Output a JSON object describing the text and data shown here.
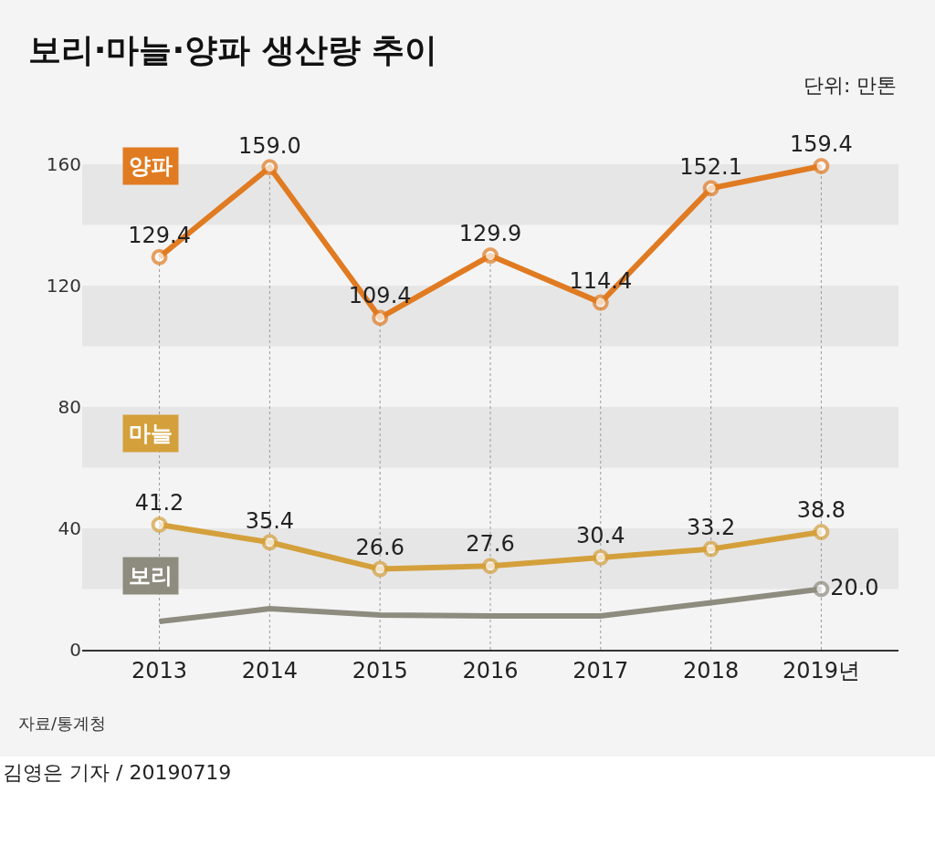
{
  "chart_data": {
    "type": "line",
    "title": "보리·마늘·양파 생산량 추이",
    "categories": [
      "2013",
      "2014",
      "2015",
      "2016",
      "2017",
      "2018",
      "2019년"
    ],
    "series": [
      {
        "name": "양파",
        "color": "#e07b22",
        "values": [
          129.4,
          159.0,
          109.4,
          129.9,
          114.4,
          152.1,
          159.4
        ],
        "value_labels": [
          "129.4",
          "159.0",
          "109.4",
          "129.9",
          "114.4",
          "152.1",
          "159.4"
        ]
      },
      {
        "name": "마늘",
        "color": "#d4a03c",
        "values": [
          41.2,
          35.4,
          26.6,
          27.6,
          30.4,
          33.2,
          38.8
        ],
        "value_labels": [
          "41.2",
          "35.4",
          "26.6",
          "27.6",
          "30.4",
          "33.2",
          "38.8"
        ]
      },
      {
        "name": "보리",
        "color": "#8e8b7f",
        "values": [
          9.3,
          13.5,
          11.4,
          11.1,
          11.1,
          15.5,
          20.0
        ],
        "value_labels": [
          null,
          null,
          null,
          null,
          null,
          null,
          "20.0"
        ],
        "marker": "none"
      }
    ],
    "ylim": [
      0,
      160
    ],
    "yticks": [
      0,
      40,
      80,
      120,
      160
    ],
    "bands": [
      {
        "axis": "y",
        "from": 20,
        "to": 40,
        "color": "#e6e6e6"
      },
      {
        "axis": "y",
        "from": 60,
        "to": 80,
        "color": "#e6e6e6"
      },
      {
        "axis": "y",
        "from": 100,
        "to": 120,
        "color": "#e6e6e6"
      },
      {
        "axis": "y",
        "from": 140,
        "to": 160,
        "color": "#e6e6e6"
      }
    ],
    "grid": "x",
    "legend": false,
    "marker": "circle",
    "line_style": "solid",
    "annotations": [
      "단위: 만톤",
      "자료/통계청",
      "김영은 기자 / 20190719"
    ]
  }
}
